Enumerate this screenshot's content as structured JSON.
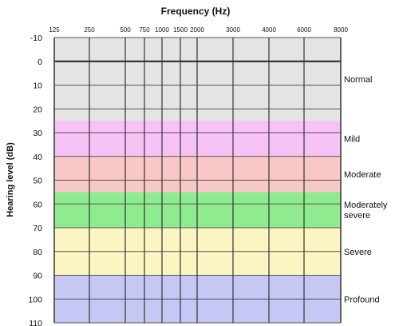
{
  "chart_data": {
    "type": "heatmap",
    "title": "Frequency (Hz)",
    "xlabel": "Frequency (Hz)",
    "ylabel": "Hearing level (dB)",
    "x_ticks": [
      "125",
      "250",
      "500",
      "750",
      "1000",
      "1500",
      "2000",
      "3000",
      "4000",
      "6000",
      "8000"
    ],
    "y_ticks": [
      -10,
      0,
      10,
      20,
      30,
      40,
      50,
      60,
      70,
      80,
      90,
      100,
      110
    ],
    "ylim": [
      -10,
      110
    ],
    "y_inverted": true,
    "grid": true,
    "bands": [
      {
        "label": "Normal",
        "from": -10,
        "to": 25,
        "color": "#e4e4e4"
      },
      {
        "label": "Mild",
        "from": 25,
        "to": 40,
        "color": "#f7c2f5"
      },
      {
        "label": "Moderate",
        "from": 40,
        "to": 55,
        "color": "#f8c8c6"
      },
      {
        "label": "Moderately\nsevere",
        "from": 55,
        "to": 70,
        "color": "#8eeb8e"
      },
      {
        "label": "Severe",
        "from": 70,
        "to": 90,
        "color": "#fbf5c2"
      },
      {
        "label": "Profound",
        "from": 90,
        "to": 110,
        "color": "#c7c7f5"
      }
    ]
  }
}
